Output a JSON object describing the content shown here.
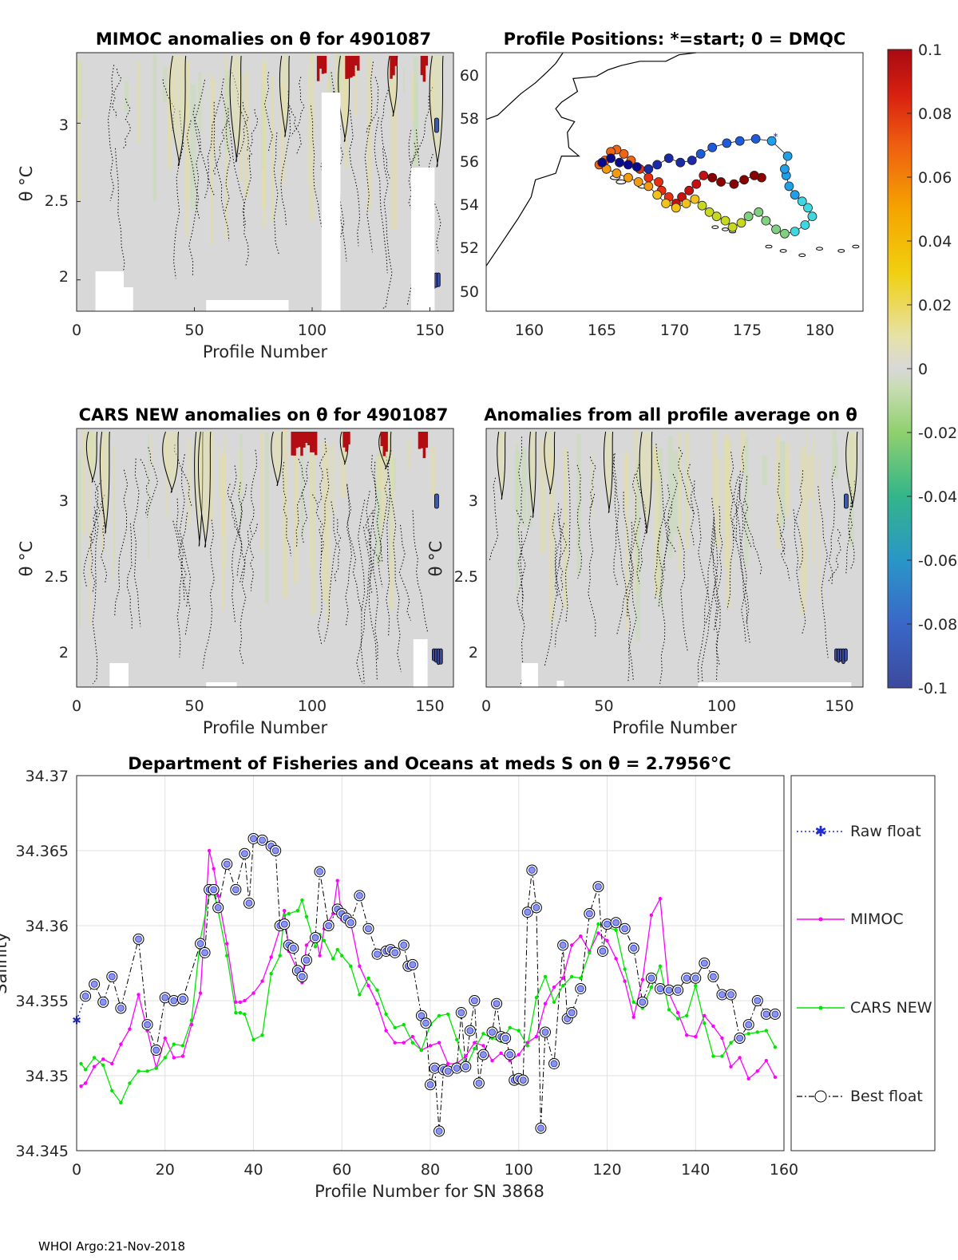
{
  "colors": {
    "anomaly_background": "#d8d8d8",
    "raw_float": "#1f2bd6",
    "mimoc": "#ff00ff",
    "cars_new": "#00e600",
    "best_float": "#000000",
    "best_float_face": "#8d95e8"
  },
  "footer": "WHOI Argo:21-Nov-2018",
  "chart_data": [
    {
      "id": "mimoc_anom",
      "type": "heatmap",
      "title": "MIMOC anomalies on θ  for 4901087",
      "xlabel": "Profile Number",
      "ylabel": "θ °C",
      "xlim": [
        0,
        160
      ],
      "ylim": [
        1.8,
        3.45
      ],
      "xticks": [
        "0",
        "50",
        "100",
        "150"
      ],
      "yticks": [
        "2",
        "2.5",
        "3"
      ],
      "hot_profiles": [
        102,
        103,
        104,
        105,
        114,
        115,
        116,
        117,
        118,
        119,
        133,
        134,
        135,
        146,
        147,
        148
      ],
      "cold_profiles": [
        151,
        152,
        153
      ]
    },
    {
      "id": "positions",
      "type": "scatter",
      "title": "Profile Positions: *=start; 0 = DMQC",
      "xlabel": "",
      "ylabel": "",
      "xlim": [
        157,
        183
      ],
      "ylim": [
        49,
        61
      ],
      "xticks": [
        "160",
        "165",
        "170",
        "175",
        "180"
      ],
      "yticks": [
        "50",
        "52",
        "54",
        "56",
        "58",
        "60"
      ]
    },
    {
      "id": "colorbar",
      "type": "colorbar",
      "range": [
        -0.1,
        0.1
      ],
      "ticks": [
        "0.1",
        "0.08",
        "0.06",
        "0.04",
        "0.02",
        "0",
        "-0.02",
        "-0.04",
        "-0.06",
        "-0.08",
        "-0.1"
      ]
    },
    {
      "id": "cars_anom",
      "type": "heatmap",
      "title": "CARS NEW anomalies on θ for 4901087",
      "xlabel": "Profile Number",
      "ylabel": "θ °C",
      "xlim": [
        0,
        160
      ],
      "ylim": [
        1.8,
        3.45
      ],
      "xticks": [
        "0",
        "50",
        "100",
        "150"
      ],
      "yticks": [
        "2",
        "2.5",
        "3"
      ],
      "hot_profiles": [
        91,
        92,
        93,
        94,
        95,
        96,
        97,
        98,
        99,
        100,
        101,
        113,
        114,
        115,
        129,
        130,
        131,
        145,
        146,
        147,
        148
      ],
      "cold_profiles": [
        151,
        152,
        153,
        154
      ]
    },
    {
      "id": "all_avg_anom",
      "type": "heatmap",
      "title": "Anomalies from all profile average on θ",
      "xlabel": "Profile Number",
      "ylabel": "θ °C",
      "xlim": [
        0,
        160
      ],
      "ylim": [
        1.8,
        3.45
      ],
      "xticks": [
        "0",
        "50",
        "100",
        "150"
      ],
      "yticks": [
        "2",
        "2.5",
        "3"
      ],
      "hot_profiles": [],
      "cold_profiles": [
        148,
        149,
        150,
        151,
        152
      ]
    },
    {
      "id": "salinity",
      "type": "line",
      "title": "Department of Fisheries and Oceans at meds S on θ = 2.7956°C",
      "xlabel": "Profile Number for SN 3868",
      "ylabel": "Salinity",
      "xlim": [
        0,
        160
      ],
      "ylim": [
        34.345,
        34.37
      ],
      "xticks": [
        "0",
        "20",
        "40",
        "60",
        "80",
        "100",
        "120",
        "140",
        "160"
      ],
      "yticks": [
        "34.345",
        "34.35",
        "34.355",
        "34.36",
        "34.365",
        "34.37"
      ],
      "grid": true,
      "legend_position": "right",
      "series": [
        {
          "name": "Raw float",
          "x": [
            0,
            2
          ],
          "y": [
            34.3537,
            34.3553
          ]
        },
        {
          "name": "MIMOC",
          "x": [
            1,
            2,
            4,
            6,
            8,
            10,
            12,
            14,
            16,
            18,
            20,
            22,
            24,
            26,
            28,
            30,
            31,
            32,
            34,
            36,
            37,
            38,
            40,
            42,
            44,
            46,
            47,
            48,
            50,
            51,
            52,
            54,
            55,
            56,
            58,
            59,
            60,
            62,
            64,
            66,
            68,
            70,
            72,
            74,
            76,
            78,
            80,
            82,
            84,
            86,
            88,
            90,
            92,
            94,
            96,
            98,
            100,
            102,
            104,
            106,
            108,
            110,
            112,
            114,
            116,
            118,
            120,
            122,
            124,
            126,
            128,
            130,
            132,
            134,
            136,
            138,
            140,
            142,
            144,
            146,
            148,
            150,
            152,
            154,
            156,
            158
          ],
          "y": [
            34.3493,
            34.3495,
            34.3506,
            34.3511,
            34.3508,
            34.3521,
            34.3531,
            34.3554,
            34.353,
            34.3505,
            34.3525,
            34.3512,
            34.3513,
            34.3534,
            34.3555,
            34.365,
            34.3638,
            34.362,
            34.3588,
            34.3549,
            34.3549,
            34.355,
            34.3555,
            34.3563,
            34.3579,
            34.3598,
            34.361,
            34.3583,
            34.357,
            34.3562,
            34.3587,
            34.3594,
            34.358,
            34.3598,
            34.3608,
            34.363,
            34.3604,
            34.3602,
            34.3573,
            34.356,
            34.3548,
            34.353,
            34.3522,
            34.3522,
            34.3526,
            34.3517,
            34.352,
            34.3522,
            34.3508,
            34.3508,
            34.3513,
            34.3522,
            34.352,
            34.351,
            34.3515,
            34.351,
            34.3514,
            34.3522,
            34.3526,
            34.3548,
            34.3559,
            34.3565,
            34.3587,
            34.3593,
            34.3583,
            34.3595,
            34.359,
            34.3578,
            34.3563,
            34.3539,
            34.3564,
            34.3607,
            34.3618,
            34.3555,
            34.3542,
            34.3527,
            34.3526,
            34.354,
            34.3533,
            34.3525,
            34.3506,
            34.3512,
            34.3498,
            34.3503,
            34.351,
            34.3499
          ]
        },
        {
          "name": "CARS NEW",
          "x": [
            1,
            2,
            4,
            6,
            8,
            10,
            12,
            14,
            16,
            18,
            20,
            22,
            24,
            26,
            28,
            30,
            31,
            32,
            34,
            36,
            37,
            38,
            40,
            42,
            44,
            46,
            47,
            48,
            50,
            51,
            52,
            54,
            55,
            56,
            58,
            59,
            60,
            62,
            64,
            66,
            68,
            70,
            72,
            74,
            76,
            78,
            80,
            82,
            84,
            86,
            88,
            90,
            92,
            94,
            96,
            98,
            100,
            102,
            104,
            106,
            108,
            110,
            112,
            114,
            116,
            118,
            120,
            122,
            124,
            126,
            128,
            130,
            132,
            134,
            136,
            138,
            140,
            142,
            144,
            146,
            148,
            150,
            152,
            154,
            156,
            158
          ],
          "y": [
            34.3508,
            34.3504,
            34.3512,
            34.3507,
            34.349,
            34.3482,
            34.3495,
            34.3503,
            34.3503,
            34.3505,
            34.3512,
            34.3521,
            34.352,
            34.3537,
            34.3591,
            34.3621,
            34.3622,
            34.361,
            34.358,
            34.3542,
            34.3542,
            34.3541,
            34.3524,
            34.3527,
            34.3568,
            34.358,
            34.3607,
            34.3608,
            34.361,
            34.3617,
            34.3606,
            34.3586,
            34.3594,
            34.359,
            34.3578,
            34.3584,
            34.358,
            34.3573,
            34.3554,
            34.3565,
            34.3557,
            34.3541,
            34.3532,
            34.3534,
            34.3522,
            34.3517,
            34.3534,
            34.354,
            34.3541,
            34.3524,
            34.3505,
            34.3518,
            34.3528,
            34.3525,
            34.3523,
            34.3532,
            34.353,
            34.352,
            34.3552,
            34.3566,
            34.3549,
            34.356,
            34.3566,
            34.3565,
            34.3582,
            34.3601,
            34.3599,
            34.3597,
            34.3571,
            34.3549,
            34.3545,
            34.3559,
            34.3573,
            34.3544,
            34.3538,
            34.354,
            34.356,
            34.3535,
            34.3513,
            34.3513,
            34.3522,
            34.3527,
            34.3528,
            34.3529,
            34.353,
            34.3519
          ]
        },
        {
          "name": "Best float",
          "x": [
            2,
            4,
            6,
            8,
            10,
            14,
            16,
            18,
            20,
            22,
            24,
            28,
            29,
            30,
            31,
            32,
            34,
            36,
            38,
            39,
            40,
            42,
            44,
            45,
            46,
            47,
            48,
            49,
            50,
            51,
            52,
            54,
            55,
            57,
            59,
            60,
            61,
            62,
            64,
            66,
            68,
            70,
            71,
            72,
            74,
            75,
            76,
            78,
            79,
            80,
            81,
            82,
            83,
            84,
            86,
            87,
            88,
            89,
            90,
            91,
            92,
            94,
            95,
            96,
            97,
            98,
            99,
            100,
            101,
            102,
            103,
            104,
            105,
            106,
            108,
            110,
            111,
            112,
            114,
            116,
            118,
            119,
            120,
            122,
            124,
            126,
            128,
            130,
            132,
            134,
            136,
            138,
            140,
            142,
            144,
            146,
            148,
            150,
            152,
            154,
            156,
            158
          ],
          "y": [
            34.3553,
            34.3561,
            34.3549,
            34.3566,
            34.3545,
            34.3591,
            34.3534,
            34.3517,
            34.3552,
            34.355,
            34.3551,
            34.3588,
            34.3582,
            34.3624,
            34.3624,
            34.3612,
            34.3641,
            34.3624,
            34.3648,
            34.3615,
            34.3658,
            34.3657,
            34.3653,
            34.365,
            34.36,
            34.3601,
            34.3587,
            34.3585,
            34.357,
            34.3566,
            34.3577,
            34.3592,
            34.3636,
            34.36,
            34.3611,
            34.3608,
            34.3605,
            34.3602,
            34.362,
            34.3598,
            34.3581,
            34.3583,
            34.3584,
            34.3582,
            34.3587,
            34.3573,
            34.3574,
            34.354,
            34.3535,
            34.3494,
            34.3505,
            34.3463,
            34.3504,
            34.3503,
            34.3505,
            34.3542,
            34.3506,
            34.353,
            34.355,
            34.3495,
            34.3514,
            34.3529,
            34.3548,
            34.3526,
            34.3525,
            34.3514,
            34.3497,
            34.3498,
            34.3497,
            34.3609,
            34.3637,
            34.3612,
            34.3465,
            34.3529,
            34.3508,
            34.3587,
            34.3538,
            34.3542,
            34.3558,
            34.3608,
            34.3626,
            34.3583,
            34.3601,
            34.3602,
            34.3598,
            34.3585,
            34.3549,
            34.3565,
            34.3558,
            34.3557,
            34.3557,
            34.3565,
            34.3565,
            34.3575,
            34.3566,
            34.3554,
            34.3554,
            34.3525,
            34.3534,
            34.355,
            34.3541,
            34.3541
          ]
        }
      ]
    }
  ]
}
